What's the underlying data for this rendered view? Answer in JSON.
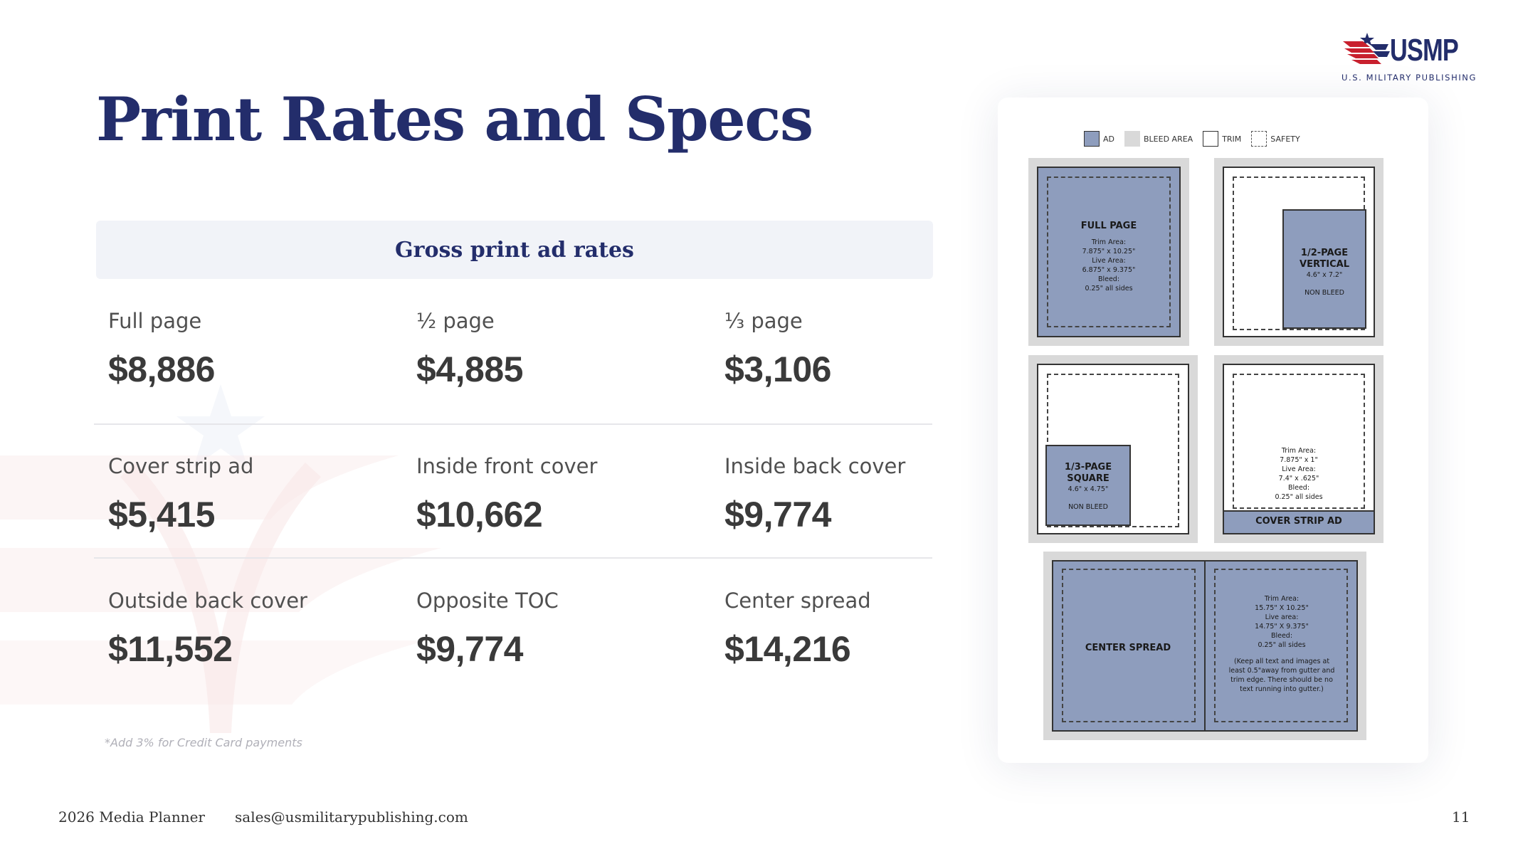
{
  "brand": {
    "logo_text": "USMP",
    "logo_subtitle": "U.S. MILITARY PUBLISHING",
    "colors": {
      "navy": "#232d6b",
      "red": "#c8202e",
      "ad_fill": "#8e9dbd",
      "bleed_fill": "#d9d9d9"
    }
  },
  "page_title": "Print Rates and Specs",
  "rates": {
    "header": "Gross print ad rates",
    "rows": [
      [
        {
          "label": "Full page",
          "value": "$8,886"
        },
        {
          "label": "½ page",
          "value": "$4,885"
        },
        {
          "label": "⅓ page",
          "value": "$3,106"
        }
      ],
      [
        {
          "label": "Cover strip ad",
          "value": "$5,415"
        },
        {
          "label": "Inside front cover",
          "value": "$10,662"
        },
        {
          "label": "Inside back cover",
          "value": "$9,774"
        }
      ],
      [
        {
          "label": "Outside back cover",
          "value": "$11,552"
        },
        {
          "label": "Opposite TOC",
          "value": "$9,774"
        },
        {
          "label": "Center spread",
          "value": "$14,216"
        }
      ]
    ],
    "footnote": "*Add 3% for Credit Card payments"
  },
  "specs": {
    "legend": [
      {
        "label": "AD",
        "icon": "ad-swatch"
      },
      {
        "label": "BLEED AREA",
        "icon": "bleed-swatch"
      },
      {
        "label": "TRIM",
        "icon": "trim-swatch"
      },
      {
        "label": "SAFETY",
        "icon": "safety-swatch"
      }
    ],
    "full_page": {
      "title": "FULL PAGE",
      "lines": [
        "Trim Area:",
        "7.875\" x 10.25\"",
        "Live Area:",
        "6.875\" x 9.375\"",
        "Bleed:",
        "0.25\" all sides"
      ]
    },
    "half_vertical": {
      "title_1": "1/2-PAGE",
      "title_2": "VERTICAL",
      "size": "4.6\" x 7.2\"",
      "note": "NON BLEED"
    },
    "third_square": {
      "title_1": "1/3-PAGE",
      "title_2": "SQUARE",
      "size": "4.6\" x 4.75\"",
      "note": "NON BLEED"
    },
    "cover_strip": {
      "title": "COVER STRIP AD",
      "lines": [
        "Trim Area:",
        "7.875\" x 1\"",
        "Live Area:",
        "7.4\" x .625\"",
        "Bleed:",
        "0.25\" all sides"
      ]
    },
    "center_spread": {
      "title": "CENTER SPREAD",
      "lines": [
        "Trim Area:",
        "15.75\" X 10.25\"",
        "Live area:",
        "14.75\" X 9.375\"",
        "Bleed:",
        "0.25\" all sides"
      ],
      "note_lines": [
        "(Keep all text and images at",
        "least 0.5\"away from gutter and",
        "trim edge. There should be no",
        "text running into gutter.)"
      ]
    }
  },
  "footer": {
    "planner": "2026 Media Planner",
    "email": "sales@usmilitarypublishing.com",
    "page_number": "11"
  }
}
